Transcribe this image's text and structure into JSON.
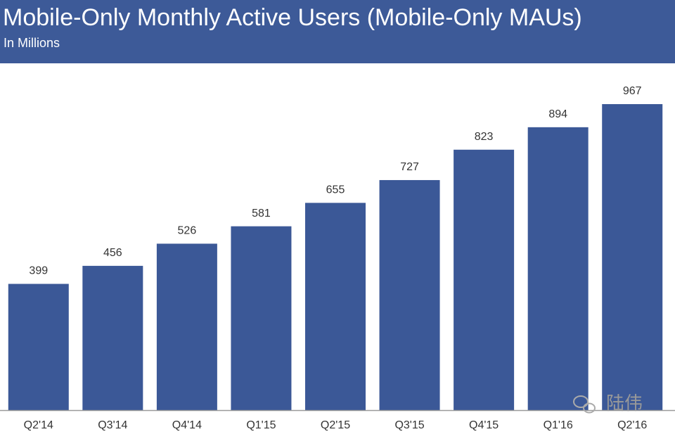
{
  "chart_data": {
    "type": "bar",
    "title": "Mobile-Only Monthly Active Users (Mobile-Only MAUs)",
    "subtitle": "In Millions",
    "categories": [
      "Q2'14",
      "Q3'14",
      "Q4'14",
      "Q1'15",
      "Q2'15",
      "Q3'15",
      "Q4'15",
      "Q1'16",
      "Q2'16"
    ],
    "values": [
      399,
      456,
      526,
      581,
      655,
      727,
      823,
      894,
      967
    ],
    "color": "#3b5897",
    "watermark": "陆伟"
  }
}
